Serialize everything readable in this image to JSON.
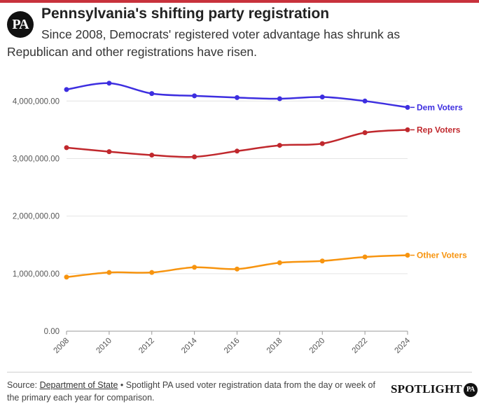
{
  "header": {
    "logo_text": "PA",
    "title": "Pennsylvania's shifting party registration",
    "subtitle": "Since 2008, Democrats' registered voter advantage has shrunk as Republican and other registrations have risen."
  },
  "footer": {
    "source_prefix": "Source: ",
    "source_link": "Department of State",
    "source_note": " • Spotlight PA used voter registration data from the day or week of the primary each year for comparison.",
    "brand_text": "SPOTLIGHT",
    "brand_badge": "PA"
  },
  "chart_data": {
    "type": "line",
    "title": "Pennsylvania's shifting party registration",
    "xlabel": "",
    "ylabel": "",
    "categories": [
      "2008",
      "2010",
      "2012",
      "2014",
      "2016",
      "2018",
      "2020",
      "2022",
      "2024"
    ],
    "y_ticks": [
      0,
      1000000,
      2000000,
      3000000,
      4000000
    ],
    "y_tick_labels": [
      "0.00",
      "1,000,000.00",
      "2,000,000.00",
      "3,000,000.00",
      "4,000,000.00"
    ],
    "ylim": [
      0,
      4600000
    ],
    "grid": true,
    "legend": "direct labels at line ends",
    "series": [
      {
        "name": "Dem Voters",
        "color": "#3d2ee0",
        "values": [
          4200000,
          4310000,
          4130000,
          4090000,
          4060000,
          4040000,
          4070000,
          4000000,
          3890000
        ]
      },
      {
        "name": "Rep Voters",
        "color": "#c0282d",
        "values": [
          3190000,
          3120000,
          3060000,
          3030000,
          3130000,
          3230000,
          3260000,
          3450000,
          3500000
        ]
      },
      {
        "name": "Other Voters",
        "color": "#f7940f",
        "values": [
          940000,
          1020000,
          1020000,
          1110000,
          1080000,
          1190000,
          1220000,
          1290000,
          1320000
        ]
      }
    ]
  }
}
